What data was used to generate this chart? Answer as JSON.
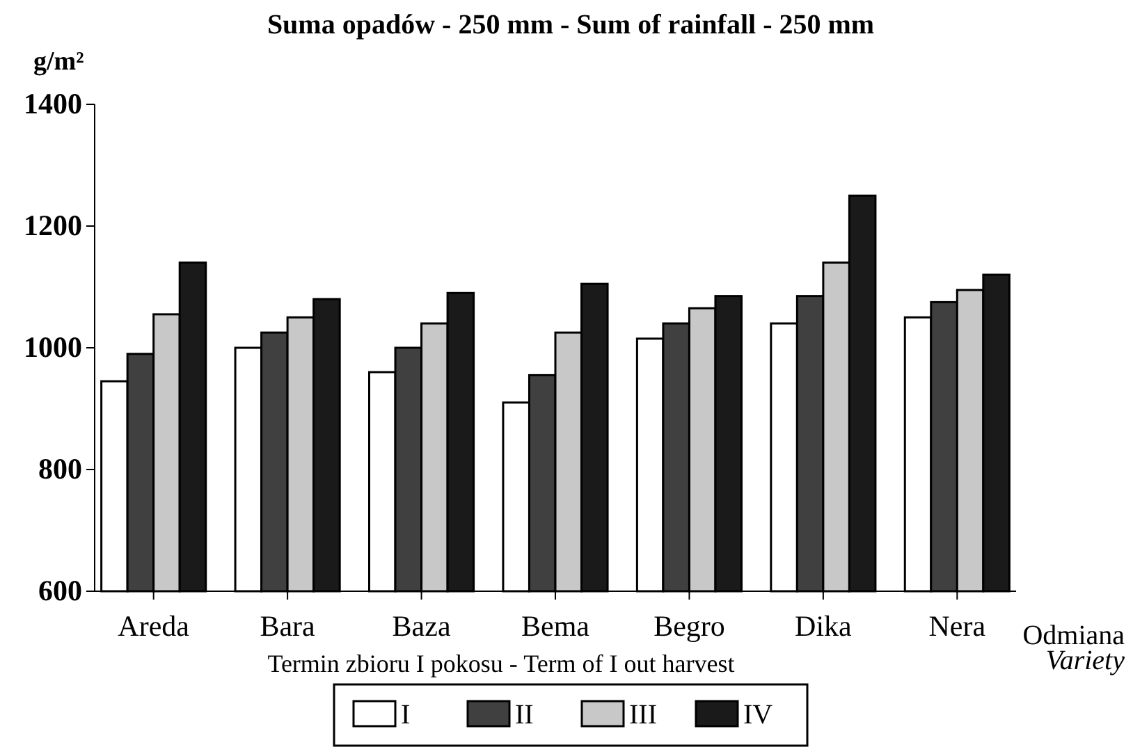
{
  "chart_data": {
    "type": "bar",
    "title": "Suma opadów - 250 mm  -  Sum of rainfall - 250 mm",
    "ylabel": "g/m²",
    "xlabel": "Odmiana Variety",
    "legend_title": "Termin zbioru I pokosu - Term of I out harvest",
    "categories": [
      "Areda",
      "Bara",
      "Baza",
      "Bema",
      "Begro",
      "Dika",
      "Nera"
    ],
    "series": [
      {
        "name": "I",
        "color": "#ffffff",
        "values": [
          945,
          1000,
          960,
          910,
          1015,
          1040,
          1050
        ]
      },
      {
        "name": "II",
        "color": "#404040",
        "values": [
          990,
          1025,
          1000,
          955,
          1040,
          1085,
          1075
        ]
      },
      {
        "name": "III",
        "color": "#c8c8c8",
        "values": [
          1055,
          1050,
          1040,
          1025,
          1065,
          1140,
          1095
        ]
      },
      {
        "name": "IV",
        "color": "#1a1a1a",
        "values": [
          1140,
          1080,
          1090,
          1105,
          1085,
          1250,
          1120
        ]
      }
    ],
    "ylim": [
      600,
      1400
    ],
    "yticks": [
      600,
      800,
      1000,
      1200,
      1400
    ],
    "grid": false,
    "legend": "bottom"
  }
}
